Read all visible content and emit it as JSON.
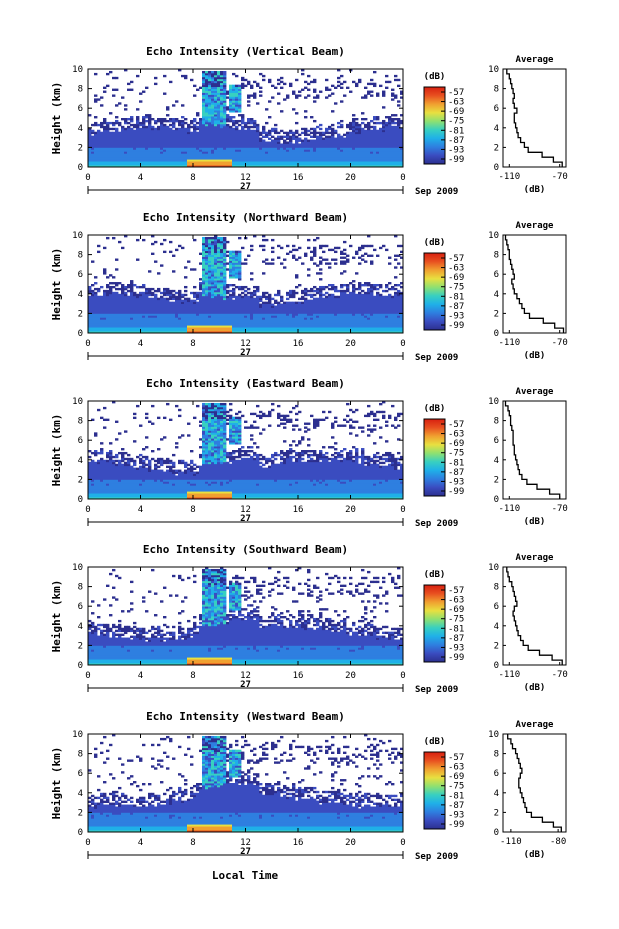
{
  "figure": {
    "xlabel": "Local Time",
    "date_label": "Sep 2009",
    "day_label": "27",
    "colorbar_unit": "(dB)",
    "avg_title": "Average",
    "avg_xlabel": "(dB)",
    "height_label": "Height (km)"
  },
  "colors": {
    "colormap": [
      "#2c2f8f",
      "#3a4cc0",
      "#2e7fe0",
      "#1fb0e8",
      "#38d0c0",
      "#8fe070",
      "#e8e040",
      "#f0a030",
      "#e85020",
      "#d82010"
    ]
  },
  "chart_data": [
    {
      "type": "heatmap",
      "title": "Echo Intensity (Vertical Beam)",
      "x_ticks": [
        "0",
        "4",
        "8",
        "12",
        "16",
        "20",
        "0"
      ],
      "xlim": [
        0,
        24
      ],
      "ylabel": "Height (km)",
      "y_ticks": [
        "0",
        "2",
        "4",
        "6",
        "8",
        "10"
      ],
      "ylim": [
        0,
        10
      ],
      "colorbar_ticks": [
        "-57",
        "-63",
        "-69",
        "-75",
        "-81",
        "-87",
        "-93",
        "-99"
      ],
      "value_range": [
        -99,
        -57
      ],
      "average_profile": {
        "xlabel": "(dB)",
        "x_ticks": [
          "-110",
          "-70"
        ],
        "xlim": [
          -115,
          -65
        ],
        "height": [
          0,
          0.5,
          1,
          1.5,
          2,
          2.5,
          3,
          3.5,
          4,
          4.5,
          5,
          5.5,
          6,
          6.5,
          7,
          7.5,
          8,
          8.5,
          9,
          9.5
        ],
        "values": [
          -68,
          -75,
          -84,
          -95,
          -98,
          -101,
          -103,
          -104,
          -105,
          -106,
          -106,
          -104,
          -106,
          -107,
          -106,
          -107,
          -108,
          -109,
          -110,
          -112
        ]
      }
    },
    {
      "type": "heatmap",
      "title": "Echo Intensity (Northward Beam)",
      "x_ticks": [
        "0",
        "4",
        "8",
        "12",
        "16",
        "20",
        "0"
      ],
      "xlim": [
        0,
        24
      ],
      "ylabel": "Height (km)",
      "y_ticks": [
        "0",
        "2",
        "4",
        "6",
        "8",
        "10"
      ],
      "ylim": [
        0,
        10
      ],
      "colorbar_ticks": [
        "-57",
        "-63",
        "-69",
        "-75",
        "-81",
        "-87",
        "-93",
        "-99"
      ],
      "value_range": [
        -99,
        -57
      ],
      "average_profile": {
        "xlabel": "(dB)",
        "x_ticks": [
          "-110",
          "-70"
        ],
        "xlim": [
          -115,
          -65
        ],
        "height": [
          0,
          0.5,
          1,
          1.5,
          2,
          2.5,
          3,
          3.5,
          4,
          4.5,
          5,
          5.5,
          6,
          6.5,
          7,
          7.5,
          8,
          8.5,
          9,
          9.5
        ],
        "values": [
          -67,
          -74,
          -83,
          -94,
          -98,
          -100,
          -102,
          -104,
          -106,
          -107,
          -108,
          -106,
          -107,
          -108,
          -109,
          -110,
          -110,
          -111,
          -112,
          -113
        ]
      }
    },
    {
      "type": "heatmap",
      "title": "Echo Intensity (Eastward Beam)",
      "x_ticks": [
        "0",
        "4",
        "8",
        "12",
        "16",
        "20",
        "0"
      ],
      "xlim": [
        0,
        24
      ],
      "ylabel": "Height (km)",
      "y_ticks": [
        "0",
        "2",
        "4",
        "6",
        "8",
        "10"
      ],
      "ylim": [
        0,
        10
      ],
      "colorbar_ticks": [
        "-57",
        "-63",
        "-69",
        "-75",
        "-81",
        "-87",
        "-93",
        "-99"
      ],
      "value_range": [
        -99,
        -57
      ],
      "average_profile": {
        "xlabel": "(dB)",
        "x_ticks": [
          "-110",
          "-70"
        ],
        "xlim": [
          -115,
          -65
        ],
        "height": [
          0,
          0.5,
          1,
          1.5,
          2,
          2.5,
          3,
          3.5,
          4,
          4.5,
          5,
          5.5,
          6,
          6.5,
          7,
          7.5,
          8,
          8.5,
          9,
          9.5
        ],
        "values": [
          -70,
          -78,
          -88,
          -96,
          -100,
          -102,
          -103,
          -104,
          -105,
          -106,
          -106,
          -107,
          -107,
          -107,
          -108,
          -109,
          -109,
          -110,
          -111,
          -113
        ]
      }
    },
    {
      "type": "heatmap",
      "title": "Echo Intensity (Southward Beam)",
      "x_ticks": [
        "0",
        "4",
        "8",
        "12",
        "16",
        "20",
        "0"
      ],
      "xlim": [
        0,
        24
      ],
      "ylabel": "Height (km)",
      "y_ticks": [
        "0",
        "2",
        "4",
        "6",
        "8",
        "10"
      ],
      "ylim": [
        0,
        10
      ],
      "colorbar_ticks": [
        "-57",
        "-63",
        "-69",
        "-75",
        "-81",
        "-87",
        "-93",
        "-99"
      ],
      "value_range": [
        -99,
        -57
      ],
      "average_profile": {
        "xlabel": "(dB)",
        "x_ticks": [
          "-110",
          "-70"
        ],
        "xlim": [
          -115,
          -65
        ],
        "height": [
          0,
          0.5,
          1,
          1.5,
          2,
          2.5,
          3,
          3.5,
          4,
          4.5,
          5,
          5.5,
          6,
          6.5,
          7,
          7.5,
          8,
          8.5,
          9,
          9.5
        ],
        "values": [
          -68,
          -76,
          -86,
          -95,
          -99,
          -101,
          -103,
          -104,
          -105,
          -106,
          -107,
          -106,
          -104,
          -105,
          -106,
          -107,
          -108,
          -110,
          -111,
          -112
        ]
      }
    },
    {
      "type": "heatmap",
      "title": "Echo Intensity (Westward Beam)",
      "x_ticks": [
        "0",
        "4",
        "8",
        "12",
        "16",
        "20",
        "0"
      ],
      "xlim": [
        0,
        24
      ],
      "ylabel": "Height (km)",
      "y_ticks": [
        "0",
        "2",
        "4",
        "6",
        "8",
        "10"
      ],
      "ylim": [
        0,
        10
      ],
      "colorbar_ticks": [
        "-57",
        "-63",
        "-69",
        "-75",
        "-81",
        "-87",
        "-93",
        "-99"
      ],
      "value_range": [
        -99,
        -57
      ],
      "average_profile": {
        "xlabel": "(dB)",
        "x_ticks": [
          "-110",
          "-80"
        ],
        "xlim": [
          -115,
          -75
        ],
        "height": [
          0,
          0.5,
          1,
          1.5,
          2,
          2.5,
          3,
          3.5,
          4,
          4.5,
          5,
          5.5,
          6,
          6.5,
          7,
          7.5,
          8,
          8.5,
          9,
          9.5
        ],
        "values": [
          -78,
          -83,
          -90,
          -97,
          -100,
          -101,
          -102,
          -103,
          -104,
          -105,
          -105,
          -104,
          -103,
          -104,
          -105,
          -106,
          -107,
          -109,
          -110,
          -112
        ]
      }
    }
  ]
}
